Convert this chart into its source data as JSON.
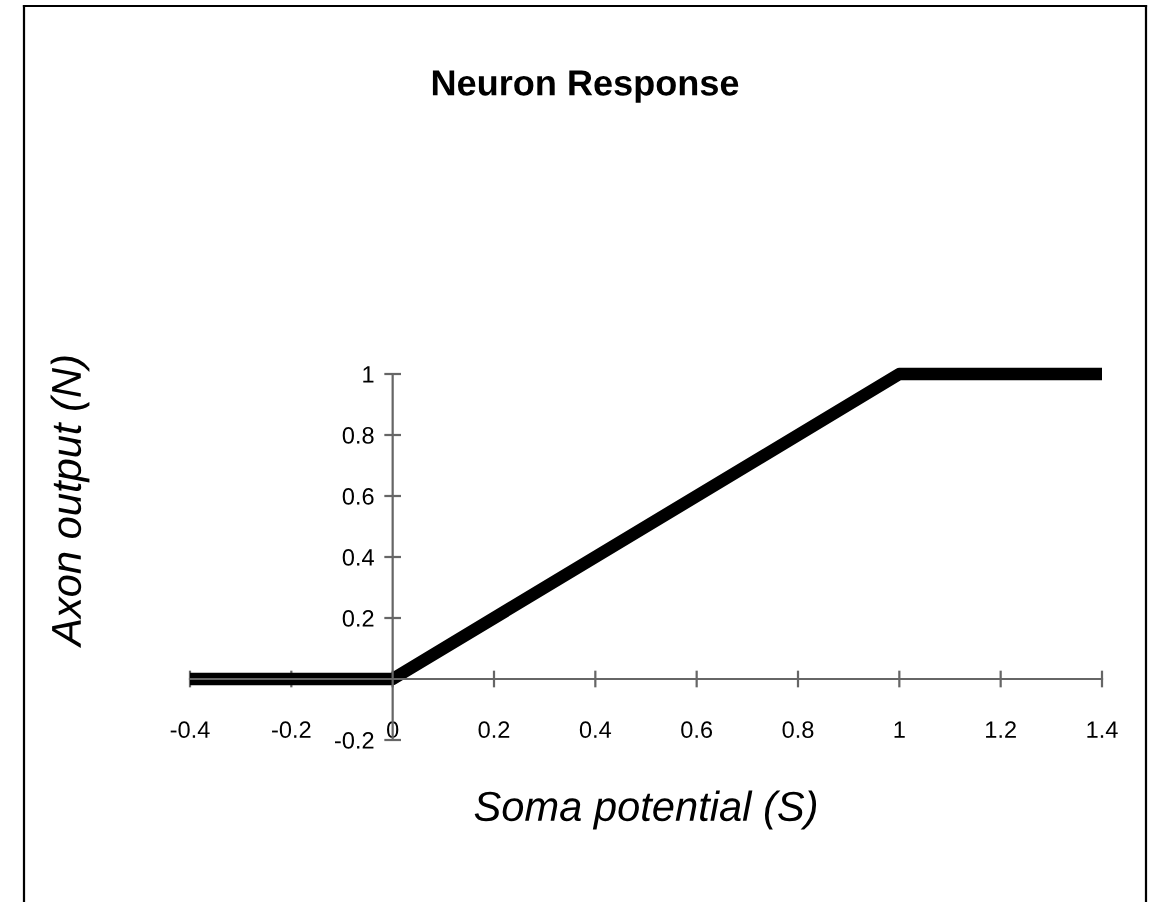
{
  "chart_data": {
    "type": "line",
    "title": "Neuron Response",
    "xlabel": "Soma potential (S)",
    "ylabel": "Axon output (N)",
    "x": [
      -0.4,
      0,
      1,
      1.4
    ],
    "series": [
      {
        "color": "#000000",
        "values": [
          0,
          0,
          1,
          1
        ]
      }
    ],
    "xlim": [
      -0.4,
      1.4
    ],
    "xticks": [
      -0.4,
      -0.2,
      0,
      0.2,
      0.4,
      0.6,
      0.8,
      1,
      1.2,
      1.4
    ],
    "ylim": [
      -0.2,
      1
    ],
    "yticks": [
      -0.2,
      {
        "value": 0,
        "label": null
      },
      0.2,
      0.4,
      0.6,
      0.8,
      1
    ],
    "grid": false,
    "marker": "none",
    "line_style": "solid"
  }
}
